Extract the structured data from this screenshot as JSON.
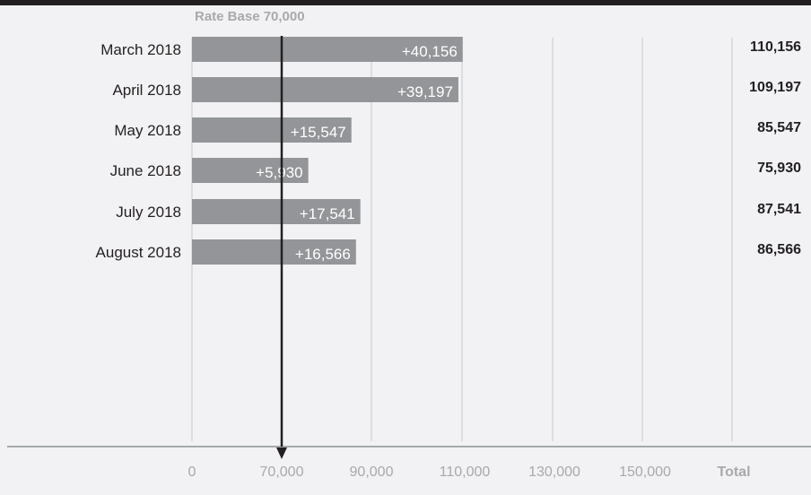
{
  "chart_data": {
    "type": "bar",
    "orientation": "horizontal",
    "title": "",
    "xlabel": "",
    "ylabel": "",
    "rate_base_label": "Rate Base 70,000",
    "rate_base": 70000,
    "categories": [
      "March 2018",
      "April 2018",
      "May 2018",
      "June 2018",
      "July 2018",
      "August 2018"
    ],
    "increments": [
      40156,
      39197,
      15547,
      5930,
      17541,
      16566
    ],
    "increment_labels": [
      "+40,156",
      "+39,197",
      "+15,547",
      "+5,930",
      "+17,541",
      "+16,566"
    ],
    "totals": [
      110156,
      109197,
      85547,
      75930,
      87541,
      86566
    ],
    "total_labels": [
      "110,156",
      "109,197",
      "85,547",
      "75,930",
      "87,541",
      "86,566"
    ],
    "x_ticks": [
      0,
      70000,
      90000,
      110000,
      130000,
      150000
    ],
    "x_tick_labels": [
      "0",
      "70,000",
      "90,000",
      "110,000",
      "130,000",
      "150,000"
    ],
    "total_column_label": "Total",
    "grid": true,
    "colors": {
      "bar": "#939598",
      "arrow": "#231f20",
      "gridline": "#c7c8ca",
      "axis": "#a7a9ac",
      "top_bar": "#231f20",
      "background": "#f2f2f4"
    }
  }
}
